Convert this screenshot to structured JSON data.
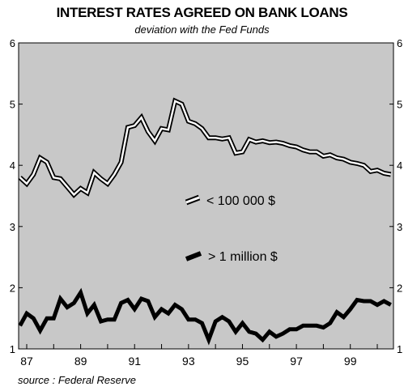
{
  "chart_data": {
    "type": "line",
    "title": "INTEREST RATES AGREED ON BANK LOANS",
    "subtitle": "deviation with the Fed Funds",
    "source": "source : Federal Reserve",
    "ylim": [
      1,
      6
    ],
    "yticks": [
      "1",
      "2",
      "3",
      "4",
      "5",
      "6"
    ],
    "xlim": [
      1986.7,
      2000.6
    ],
    "xticks": [
      "87",
      "89",
      "91",
      "93",
      "95",
      "97",
      "99"
    ],
    "xtick_years": [
      1987,
      1989,
      1991,
      1993,
      1995,
      1997,
      1999
    ],
    "background": "#c8c8c8",
    "series": [
      {
        "name": "< 100 000 $",
        "style": "outlined",
        "x": [
          1986.75,
          1987.0,
          1987.25,
          1987.5,
          1987.75,
          1988.0,
          1988.25,
          1988.5,
          1988.75,
          1989.0,
          1989.25,
          1989.5,
          1989.75,
          1990.0,
          1990.25,
          1990.5,
          1990.75,
          1991.0,
          1991.25,
          1991.5,
          1991.75,
          1992.0,
          1992.25,
          1992.5,
          1992.75,
          1993.0,
          1993.25,
          1993.5,
          1993.75,
          1994.0,
          1994.25,
          1994.5,
          1994.75,
          1995.0,
          1995.25,
          1995.5,
          1995.75,
          1996.0,
          1996.25,
          1996.5,
          1996.75,
          1997.0,
          1997.25,
          1997.5,
          1997.75,
          1998.0,
          1998.25,
          1998.5,
          1998.75,
          1999.0,
          1999.25,
          1999.5,
          1999.75,
          2000.0,
          2000.25,
          2000.5
        ],
        "y": [
          3.8,
          3.7,
          3.85,
          4.12,
          4.05,
          3.8,
          3.78,
          3.65,
          3.52,
          3.62,
          3.55,
          3.88,
          3.78,
          3.7,
          3.85,
          4.05,
          4.62,
          4.65,
          4.78,
          4.55,
          4.4,
          4.6,
          4.58,
          5.05,
          5.0,
          4.72,
          4.68,
          4.6,
          4.45,
          4.45,
          4.43,
          4.45,
          4.2,
          4.22,
          4.42,
          4.38,
          4.4,
          4.37,
          4.38,
          4.36,
          4.32,
          4.3,
          4.25,
          4.22,
          4.22,
          4.15,
          4.17,
          4.12,
          4.1,
          4.05,
          4.03,
          4.0,
          3.9,
          3.92,
          3.87,
          3.85
        ]
      },
      {
        "name": "> 1 million $",
        "style": "thick",
        "x": [
          1986.75,
          1987.0,
          1987.25,
          1987.5,
          1987.75,
          1988.0,
          1988.25,
          1988.5,
          1988.75,
          1989.0,
          1989.25,
          1989.5,
          1989.75,
          1990.0,
          1990.25,
          1990.5,
          1990.75,
          1991.0,
          1991.25,
          1991.5,
          1991.75,
          1992.0,
          1992.25,
          1992.5,
          1992.75,
          1993.0,
          1993.25,
          1993.5,
          1993.75,
          1994.0,
          1994.25,
          1994.5,
          1994.75,
          1995.0,
          1995.25,
          1995.5,
          1995.75,
          1996.0,
          1996.25,
          1996.5,
          1996.75,
          1997.0,
          1997.25,
          1997.5,
          1997.75,
          1998.0,
          1998.25,
          1998.5,
          1998.75,
          1999.0,
          1999.25,
          1999.5,
          1999.75,
          2000.0,
          2000.25,
          2000.5
        ],
        "y": [
          1.38,
          1.58,
          1.5,
          1.3,
          1.5,
          1.5,
          1.82,
          1.68,
          1.75,
          1.92,
          1.58,
          1.72,
          1.45,
          1.48,
          1.48,
          1.75,
          1.8,
          1.65,
          1.82,
          1.78,
          1.52,
          1.65,
          1.58,
          1.72,
          1.65,
          1.48,
          1.48,
          1.42,
          1.15,
          1.45,
          1.52,
          1.45,
          1.28,
          1.42,
          1.28,
          1.25,
          1.15,
          1.28,
          1.2,
          1.25,
          1.32,
          1.32,
          1.38,
          1.38,
          1.38,
          1.35,
          1.42,
          1.6,
          1.52,
          1.65,
          1.8,
          1.78,
          1.78,
          1.72,
          1.78,
          1.72
        ]
      }
    ]
  }
}
